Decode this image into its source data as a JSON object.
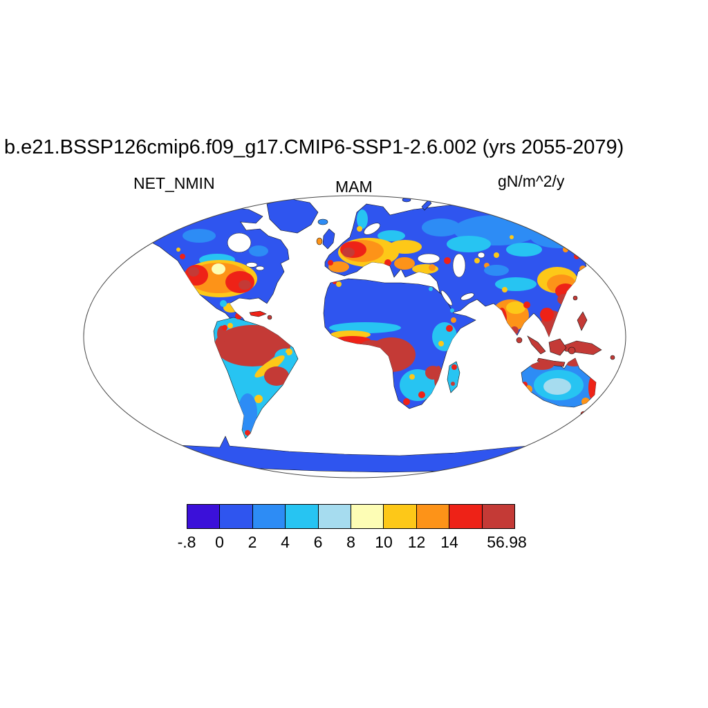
{
  "title": "b.e21.BSSP126cmip6.f09_g17.CMIP6-SSP1-2.6.002 (yrs 2055-2079)",
  "labels": {
    "variable": "NET_NMIN",
    "season": "MAM",
    "units": "gN/m^2/y"
  },
  "chart_data": {
    "type": "heatmap",
    "projection": "Robinson world map, land-only shading",
    "title": "b.e21.BSSP126cmip6.f09_g17.CMIP6-SSP1-2.6.002 (yrs 2055-2079)",
    "variable": "NET_NMIN",
    "season": "MAM",
    "units": "gN/m^2/y",
    "colorbar": {
      "orientation": "horizontal",
      "min": -0.8,
      "max": 56.98,
      "tick_labels": [
        "-.8",
        "0",
        "2",
        "4",
        "6",
        "8",
        "10",
        "12",
        "14",
        "56.98"
      ],
      "colors": [
        "#3b10d9",
        "#2f55ef",
        "#2d8cf5",
        "#27c4f2",
        "#a6dcef",
        "#fdfdb5",
        "#fdc818",
        "#fd9318",
        "#ee2217",
        "#c43a36"
      ]
    },
    "region_values_approx": [
      {
        "region": "Amazon Basin",
        "value": ">14"
      },
      {
        "region": "Congo Basin",
        "value": ">14"
      },
      {
        "region": "Southeast Asia, Indonesia, New Guinea",
        "value": ">14"
      },
      {
        "region": "Northern Australia coastal fringe",
        "value": ">14"
      },
      {
        "region": "Western and Central Europe",
        "value": "8-14"
      },
      {
        "region": "Eastern United States",
        "value": "8-14"
      },
      {
        "region": "Western United States",
        "value": "8-14"
      },
      {
        "region": "Eastern China",
        "value": "8-14"
      },
      {
        "region": "India",
        "value": "6-14"
      },
      {
        "region": "Southern Brazil",
        "value": ">14"
      },
      {
        "region": "Boreal Canada and Siberia",
        "value": "0-4"
      },
      {
        "region": "Sahara, Arabia, Tibet margins",
        "value": "0-2"
      },
      {
        "region": "Antarctica, Greenland, high Arctic",
        "value": "<2"
      }
    ]
  }
}
